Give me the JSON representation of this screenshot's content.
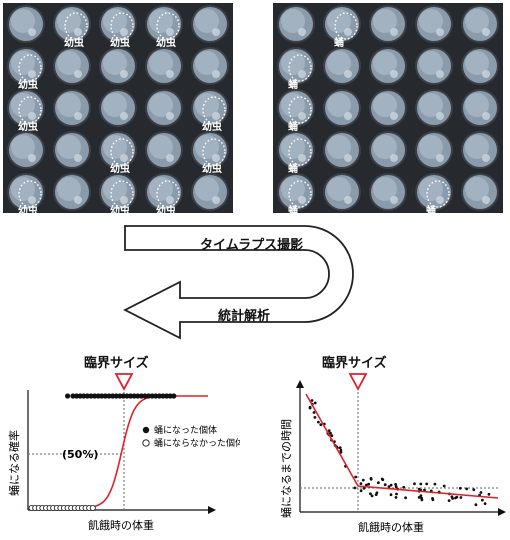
{
  "photos": {
    "left": {
      "larva_label": "幼虫",
      "labels": [
        {
          "row": 0,
          "col": 1
        },
        {
          "row": 0,
          "col": 2
        },
        {
          "row": 0,
          "col": 3
        },
        {
          "row": 1,
          "col": 0
        },
        {
          "row": 2,
          "col": 0
        },
        {
          "row": 2,
          "col": 4
        },
        {
          "row": 3,
          "col": 2
        },
        {
          "row": 3,
          "col": 4
        },
        {
          "row": 4,
          "col": 0
        },
        {
          "row": 4,
          "col": 2
        },
        {
          "row": 4,
          "col": 3
        }
      ]
    },
    "right": {
      "pupa_label": "蛹",
      "labels": [
        {
          "row": 0,
          "col": 1
        },
        {
          "row": 1,
          "col": 0
        },
        {
          "row": 2,
          "col": 0
        },
        {
          "row": 3,
          "col": 0
        },
        {
          "row": 4,
          "col": 0
        },
        {
          "row": 4,
          "col": 3
        }
      ]
    }
  },
  "flow": {
    "top_label": "タイムラプス撮影",
    "bottom_label": "統計解析"
  },
  "chart_data": [
    {
      "type": "scatter",
      "title": "臨界サイズ",
      "xlabel": "飢餓時の体重",
      "ylabel": "蛹になる確率",
      "y_marker_label": "(50%)",
      "legend": [
        {
          "marker": "filled-circle",
          "label": "蛹になった個体"
        },
        {
          "marker": "open-circle",
          "label": "蛹にならなかった個体"
        }
      ],
      "series": [
        {
          "name": "蛹になった個体",
          "y": 1,
          "x": [
            0.22,
            0.25,
            0.27,
            0.29,
            0.31,
            0.33,
            0.35,
            0.37,
            0.39,
            0.41,
            0.43,
            0.45,
            0.47,
            0.49,
            0.51,
            0.53,
            0.55,
            0.57,
            0.59,
            0.61,
            0.63,
            0.65,
            0.67,
            0.69,
            0.71,
            0.73,
            0.75,
            0.77,
            0.79,
            0.81
          ]
        },
        {
          "name": "蛹にならなかった個体",
          "y": 0,
          "x": [
            0.02,
            0.04,
            0.06,
            0.08,
            0.1,
            0.12,
            0.14,
            0.16,
            0.18,
            0.2,
            0.22,
            0.24,
            0.26,
            0.28,
            0.3,
            0.32,
            0.34,
            0.36
          ]
        }
      ],
      "fit": "sigmoid",
      "critical_x": 0.27
    },
    {
      "type": "scatter",
      "title": "臨界サイズ",
      "xlabel": "飢餓時の体重",
      "ylabel": "蛹になるまでの時間",
      "fit": "piecewise-linear",
      "critical_x": 0.22
    }
  ]
}
